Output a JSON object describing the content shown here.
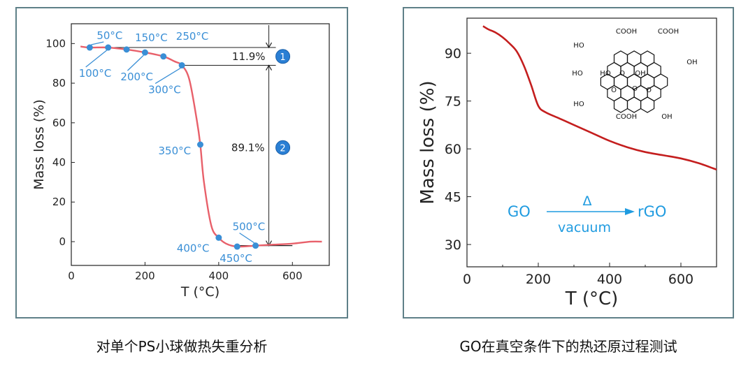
{
  "captions": {
    "left": "对单个PS小球做热失重分析",
    "right": "GO在真空条件下的热还原过程测试"
  },
  "colors": {
    "left_curve": "#e8606a",
    "right_curve": "#c41e1e",
    "point_blue": "#3a8fd6",
    "label_blue": "#3a8fd6",
    "badge_blue": "#2a7fd4",
    "panel_border": "#5f8088"
  },
  "chart_data": [
    {
      "type": "line",
      "xlabel": "T (°C)",
      "ylabel": "Mass loss (%)",
      "xlim": [
        0,
        700
      ],
      "ylim": [
        -12,
        110
      ],
      "xticks": [
        0,
        200,
        400,
        600
      ],
      "yticks": [
        0,
        20,
        40,
        60,
        80,
        100
      ],
      "grid": false,
      "series": [
        {
          "x": [
            25,
            50,
            100,
            150,
            200,
            250,
            280,
            300,
            320,
            340,
            350,
            360,
            380,
            400,
            420,
            450,
            500,
            550,
            600,
            650,
            680
          ],
          "y": [
            98.5,
            98,
            98,
            97,
            95.5,
            93.5,
            91,
            89,
            82,
            62,
            49,
            30,
            8,
            2,
            -1,
            -2.5,
            -2,
            -1.5,
            -1,
            0,
            0
          ]
        }
      ],
      "points": [
        {
          "x": 50,
          "y": 98,
          "label": "50°C"
        },
        {
          "x": 100,
          "y": 98,
          "label": "100°C"
        },
        {
          "x": 150,
          "y": 97,
          "label": "150°C"
        },
        {
          "x": 200,
          "y": 95.5,
          "label": "200°C"
        },
        {
          "x": 250,
          "y": 93.5,
          "label": "250°C"
        },
        {
          "x": 300,
          "y": 89,
          "label": "300°C"
        },
        {
          "x": 350,
          "y": 49,
          "label": "350°C"
        },
        {
          "x": 400,
          "y": 2,
          "label": "400°C"
        },
        {
          "x": 450,
          "y": -2.5,
          "label": "450°C"
        },
        {
          "x": 500,
          "y": -2,
          "label": "500°C"
        }
      ],
      "annotations": [
        {
          "text": "11.9%",
          "badge": "1"
        },
        {
          "text": "89.1%",
          "badge": "2"
        }
      ]
    },
    {
      "type": "line",
      "xlabel": "T (°C)",
      "ylabel": "Mass loss (%)",
      "xlim": [
        0,
        700
      ],
      "ylim": [
        23,
        101
      ],
      "xticks": [
        0,
        200,
        400,
        600
      ],
      "yticks": [
        30,
        45,
        60,
        75,
        90
      ],
      "grid": false,
      "series": [
        {
          "x": [
            45,
            60,
            80,
            100,
            120,
            140,
            160,
            180,
            200,
            220,
            260,
            300,
            350,
            400,
            450,
            500,
            550,
            600,
            650,
            700
          ],
          "y": [
            98.5,
            97.5,
            96.5,
            95,
            93,
            90.5,
            86,
            80,
            73.5,
            71.5,
            69.5,
            67.5,
            65,
            62.5,
            60.5,
            59,
            58,
            57,
            55.5,
            53.5
          ]
        }
      ],
      "scheme": {
        "left": "GO",
        "top": "Δ",
        "bottom": "vacuum",
        "right": "rGO"
      },
      "structure_labels": [
        "COOH",
        "COOH",
        "HO",
        "HO",
        "O",
        "OH",
        "OH",
        "HO",
        "O",
        "O",
        "O",
        "HO",
        "COOH",
        "OH"
      ]
    }
  ]
}
